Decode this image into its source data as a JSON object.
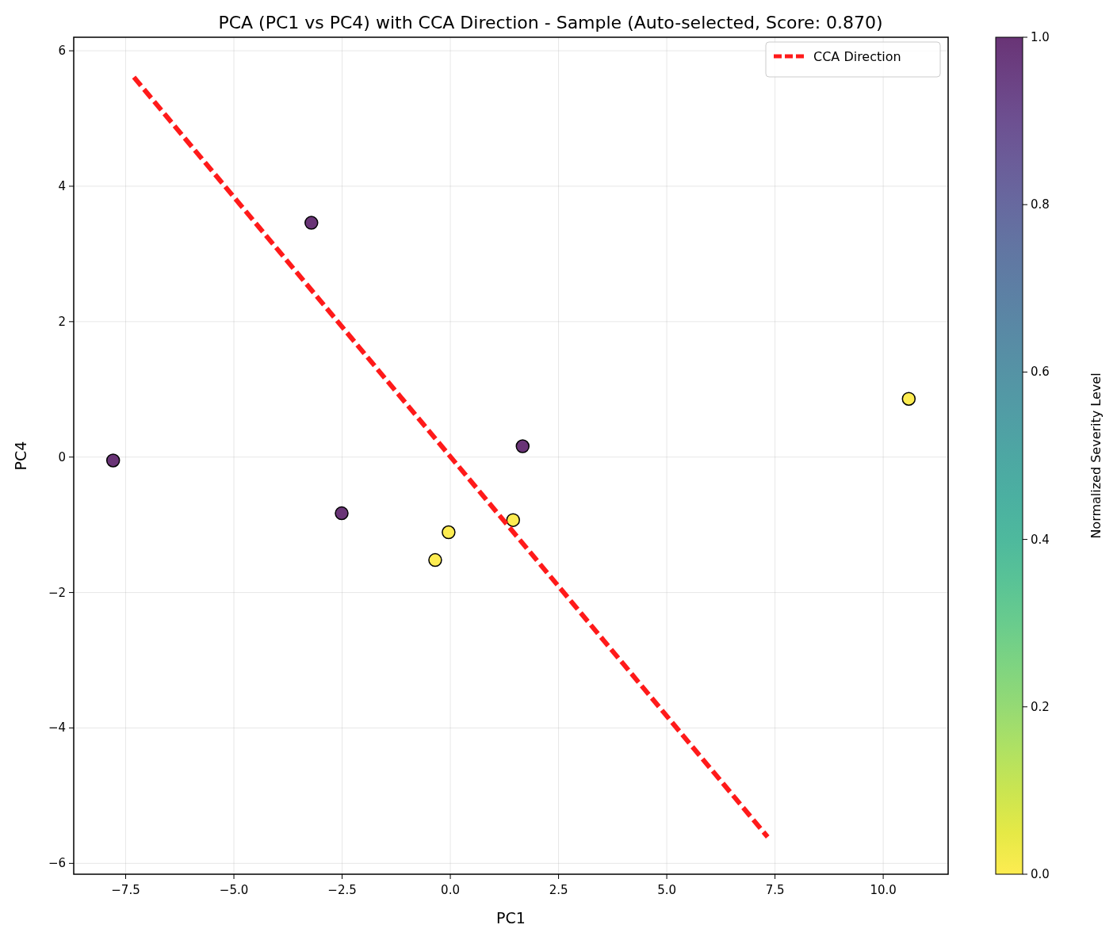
{
  "chart_data": {
    "type": "scatter",
    "title": "PCA (PC1 vs PC4) with CCA Direction - Sample (Auto-selected, Score: 0.870)",
    "xlabel": "PC1",
    "ylabel": "PC4",
    "clabel": "Normalized Severity Level",
    "xlim": [
      -8.7,
      11.5
    ],
    "ylim": [
      -6.16,
      6.2
    ],
    "xticks": [
      {
        "value": -7.5,
        "label": "−7.5"
      },
      {
        "value": -5,
        "label": "−5.0"
      },
      {
        "value": -2.5,
        "label": "−2.5"
      },
      {
        "value": 0,
        "label": "0.0"
      },
      {
        "value": 2.5,
        "label": "2.5"
      },
      {
        "value": 5,
        "label": "5.0"
      },
      {
        "value": 7.5,
        "label": "7.5"
      },
      {
        "value": 10,
        "label": "10.0"
      }
    ],
    "yticks": [
      {
        "value": -6,
        "label": "−6"
      },
      {
        "value": -4,
        "label": "−4"
      },
      {
        "value": -2,
        "label": "−2"
      },
      0,
      2,
      4,
      6
    ],
    "clim": [
      0,
      1
    ],
    "cticks": [
      {
        "value": 0,
        "label": "0.0"
      },
      {
        "value": 0.2,
        "label": "0.2"
      },
      {
        "value": 0.4,
        "label": "0.4"
      },
      {
        "value": 0.6,
        "label": "0.6"
      },
      {
        "value": 0.8,
        "label": "0.8"
      },
      {
        "value": 1,
        "label": "1.0"
      }
    ],
    "grid": true,
    "legend": "top right",
    "series": [
      {
        "type": "scatter",
        "marker": "circle",
        "x": [
          -7.79,
          -3.21,
          -2.51,
          1.67,
          -0.04,
          -0.35,
          1.45,
          10.59
        ],
        "values": [
          -0.05,
          3.46,
          -0.83,
          0.16,
          -1.11,
          -1.52,
          -0.93,
          0.86
        ],
        "colors": [
          "#693476",
          "#693476",
          "#693476",
          "#693476",
          "#fdec51",
          "#fdec51",
          "#fdec51",
          "#fdec51"
        ]
      },
      {
        "type": "line",
        "name": "CCA Direction",
        "color": "#ff1a1a",
        "line_style": "dashed",
        "marker": "none",
        "x": [
          -7.31,
          7.33
        ],
        "values": [
          5.61,
          -5.61
        ]
      }
    ]
  }
}
